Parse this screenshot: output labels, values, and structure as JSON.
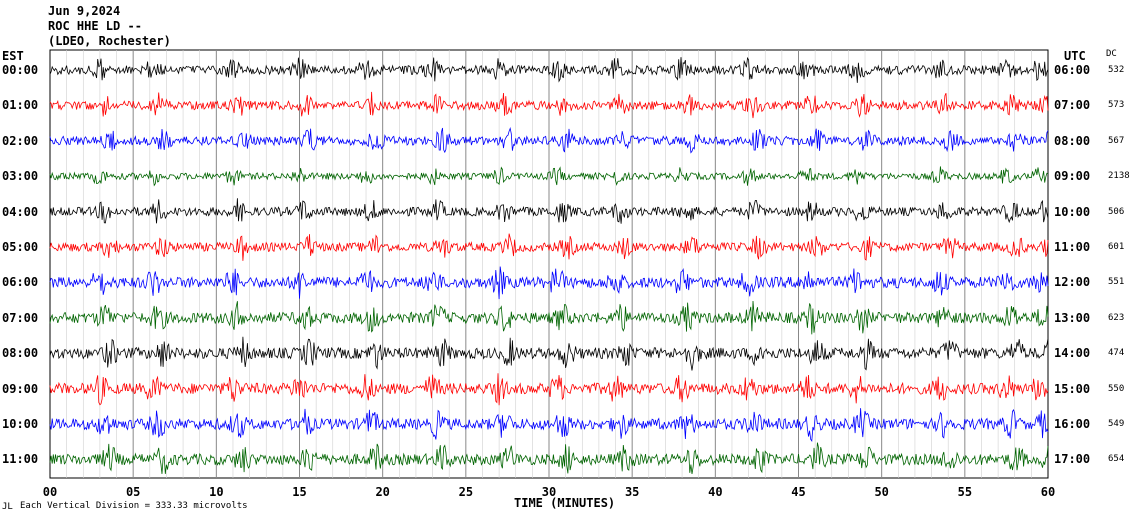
{
  "header": {
    "date": "Jun 9,2024",
    "station": "ROC HHE LD --",
    "network": "(LDEO, Rochester)"
  },
  "left_axis_title": "EST",
  "right_axis_title": "UTC",
  "dc_title": "DC",
  "footer": {
    "mark": "JL",
    "scale_note": "Each Vertical Division =  333.33 microvolts"
  },
  "chart_data": {
    "type": "line",
    "title": "",
    "xlabel": "TIME (MINUTES)",
    "xlim": [
      0,
      60
    ],
    "x_ticks": [
      "00",
      "05",
      "10",
      "15",
      "20",
      "25",
      "30",
      "35",
      "40",
      "45",
      "50",
      "55",
      "60"
    ],
    "trace_colors": [
      "#000000",
      "#ff0000",
      "#0000ff",
      "#006400"
    ],
    "rows": [
      {
        "est": "00:00",
        "utc": "06:00",
        "dc": "532",
        "color": "#000000"
      },
      {
        "est": "01:00",
        "utc": "07:00",
        "dc": "573",
        "color": "#ff0000"
      },
      {
        "est": "02:00",
        "utc": "08:00",
        "dc": "567",
        "color": "#0000ff"
      },
      {
        "est": "03:00",
        "utc": "09:00",
        "dc": "2138",
        "color": "#006400"
      },
      {
        "est": "04:00",
        "utc": "10:00",
        "dc": "506",
        "color": "#000000"
      },
      {
        "est": "05:00",
        "utc": "11:00",
        "dc": "601",
        "color": "#ff0000"
      },
      {
        "est": "06:00",
        "utc": "12:00",
        "dc": "551",
        "color": "#0000ff"
      },
      {
        "est": "07:00",
        "utc": "13:00",
        "dc": "623",
        "color": "#006400"
      },
      {
        "est": "08:00",
        "utc": "14:00",
        "dc": "474",
        "color": "#000000"
      },
      {
        "est": "09:00",
        "utc": "15:00",
        "dc": "550",
        "color": "#ff0000"
      },
      {
        "est": "10:00",
        "utc": "16:00",
        "dc": "549",
        "color": "#0000ff"
      },
      {
        "est": "11:00",
        "utc": "17:00",
        "dc": "654",
        "color": "#006400"
      }
    ],
    "grid": true
  }
}
